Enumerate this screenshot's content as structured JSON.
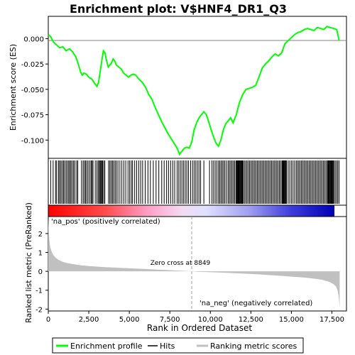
{
  "chart_data": {
    "type": "line",
    "title": "Enrichment plot: V$HNF4_DR1_Q3",
    "xlabel": "Rank in Ordered Dataset",
    "es_panel": {
      "ylabel": "Enrichment score (ES)",
      "ylim": [
        -0.118,
        0.022
      ],
      "yticks": [
        0.0,
        -0.025,
        -0.05,
        -0.075,
        -0.1
      ],
      "ytick_labels": [
        "0.000",
        "-0.025",
        "-0.050",
        "-0.075",
        "-0.100"
      ],
      "series": [
        {
          "name": "Enrichment profile",
          "color": "#00ff00",
          "x": [
            0,
            150,
            300,
            500,
            700,
            900,
            1100,
            1300,
            1500,
            1700,
            1850,
            2000,
            2100,
            2200,
            2350,
            2500,
            2700,
            2850,
            3000,
            3100,
            3200,
            3300,
            3400,
            3500,
            3600,
            3700,
            3800,
            3900,
            4000,
            4100,
            4200,
            4350,
            4500,
            4650,
            4800,
            4950,
            5100,
            5250,
            5400,
            5600,
            5800,
            6000,
            6200,
            6400,
            6600,
            6800,
            7000,
            7200,
            7400,
            7600,
            7800,
            7950,
            8100,
            8250,
            8400,
            8550,
            8700,
            8849,
            9000,
            9150,
            9300,
            9450,
            9600,
            9750,
            9900,
            10050,
            10200,
            10350,
            10500,
            10650,
            10800,
            10950,
            11100,
            11250,
            11400,
            11600,
            11800,
            12000,
            12200,
            12400,
            12600,
            12800,
            13000,
            13200,
            13400,
            13600,
            13800,
            14000,
            14200,
            14400,
            14600,
            14800,
            15000,
            15200,
            15400,
            15600,
            15800,
            16000,
            16200,
            16400,
            16600,
            16800,
            17000,
            17200,
            17400,
            17600,
            17800,
            17950
          ],
          "y": [
            0.004,
            0.002,
            -0.003,
            -0.006,
            -0.009,
            -0.008,
            -0.012,
            -0.01,
            -0.013,
            -0.018,
            -0.025,
            -0.033,
            -0.036,
            -0.034,
            -0.035,
            -0.038,
            -0.04,
            -0.044,
            -0.047,
            -0.043,
            -0.033,
            -0.022,
            -0.012,
            -0.014,
            -0.022,
            -0.028,
            -0.026,
            -0.024,
            -0.02,
            -0.022,
            -0.026,
            -0.028,
            -0.03,
            -0.034,
            -0.036,
            -0.038,
            -0.036,
            -0.035,
            -0.036,
            -0.04,
            -0.043,
            -0.048,
            -0.055,
            -0.06,
            -0.068,
            -0.075,
            -0.082,
            -0.088,
            -0.094,
            -0.099,
            -0.104,
            -0.108,
            -0.114,
            -0.111,
            -0.108,
            -0.107,
            -0.108,
            -0.102,
            -0.09,
            -0.083,
            -0.078,
            -0.075,
            -0.072,
            -0.075,
            -0.082,
            -0.09,
            -0.097,
            -0.103,
            -0.106,
            -0.1,
            -0.09,
            -0.084,
            -0.081,
            -0.078,
            -0.083,
            -0.075,
            -0.063,
            -0.055,
            -0.05,
            -0.049,
            -0.048,
            -0.046,
            -0.038,
            -0.029,
            -0.025,
            -0.022,
            -0.018,
            -0.015,
            -0.017,
            -0.014,
            -0.005,
            -0.002,
            0.001,
            0.004,
            0.006,
            0.007,
            0.009,
            0.01,
            0.009,
            0.008,
            0.011,
            0.01,
            0.009,
            0.012,
            0.011,
            0.01,
            0.009,
            -0.002
          ]
        }
      ]
    },
    "hits_panel": {
      "legend_label": "Hits",
      "color": "#000000",
      "hit_ranks": [
        150,
        300,
        450,
        520,
        640,
        700,
        780,
        860,
        940,
        1010,
        1100,
        1180,
        1260,
        1330,
        1400,
        1480,
        1560,
        1640,
        1750,
        1820,
        2050,
        2150,
        2230,
        2300,
        2380,
        2460,
        2560,
        2640,
        2700,
        2760,
        2900,
        3000,
        3080,
        3150,
        3200,
        3250,
        3300,
        3350,
        3420,
        3490,
        3720,
        3800,
        3880,
        3960,
        4030,
        4120,
        4200,
        4300,
        4420,
        4540,
        4660,
        4780,
        4920,
        5020,
        5120,
        5200,
        5330,
        5450,
        5580,
        5700,
        5820,
        5980,
        6150,
        6300,
        6480,
        6650,
        6820,
        7000,
        7150,
        7300,
        7420,
        7550,
        7680,
        7800,
        7950,
        8050,
        8150,
        8250,
        8350,
        8450,
        8550,
        8650,
        8780,
        8900,
        9000,
        9100,
        9200,
        9300,
        9400,
        9600,
        9950,
        10100,
        10200,
        10300,
        10400,
        10500,
        10580,
        10660,
        10740,
        10820,
        10900,
        11000,
        11100,
        11180,
        11260,
        11340,
        11420,
        11500,
        11580,
        11620,
        11660,
        11700,
        11740,
        11780,
        11820,
        11860,
        11900,
        11940,
        11980,
        12020,
        12100,
        12180,
        12260,
        12340,
        12420,
        12500,
        12580,
        12660,
        12740,
        12820,
        12900,
        12980,
        13060,
        13140,
        13220,
        13300,
        13380,
        13460,
        13540,
        13620,
        13700,
        13780,
        13860,
        13940,
        14020,
        14100,
        14180,
        14260,
        14340,
        14420,
        14460,
        14500,
        14540,
        14580,
        14620,
        14660,
        14700,
        14800,
        14900,
        15000,
        15100,
        15200,
        15300,
        15380,
        15460,
        15540,
        15620,
        15700,
        15780,
        15860,
        15940,
        16020,
        16100,
        16180,
        16260,
        16340,
        16420,
        16500,
        16580,
        16660,
        16740,
        16820,
        16900,
        16980,
        17060,
        17140,
        17220,
        17260,
        17300,
        17340,
        17380,
        17420,
        17460,
        17500,
        17540,
        17580,
        17620,
        17700,
        17780,
        17860,
        17940
      ]
    },
    "ranked_metric_panel": {
      "ylabel": "Ranked list metric (PreRanked)",
      "legend_label": "Ranking metric scores",
      "color": "#c0c0c0",
      "ylim": [
        -2.1,
        2.9
      ],
      "yticks": [
        2,
        1,
        0,
        -1,
        -2
      ],
      "x": [
        0,
        20,
        60,
        120,
        200,
        300,
        450,
        650,
        900,
        1200,
        1600,
        2000,
        2500,
        3000,
        3500,
        4000,
        4500,
        5000,
        5500,
        6000,
        6500,
        7000,
        7500,
        8000,
        8500,
        8849,
        9200,
        9800,
        10500,
        11000,
        11500,
        12000,
        12500,
        13000,
        13500,
        14000,
        14500,
        15000,
        15500,
        16000,
        16500,
        16900,
        17200,
        17400,
        17600,
        17750,
        17850,
        17920,
        17980
      ],
      "values": [
        2.85,
        2.3,
        1.7,
        1.3,
        1.05,
        0.88,
        0.72,
        0.6,
        0.5,
        0.43,
        0.37,
        0.32,
        0.28,
        0.25,
        0.22,
        0.2,
        0.18,
        0.16,
        0.14,
        0.12,
        0.1,
        0.08,
        0.06,
        0.04,
        0.02,
        0.0,
        -0.02,
        -0.04,
        -0.06,
        -0.08,
        -0.1,
        -0.12,
        -0.14,
        -0.16,
        -0.19,
        -0.22,
        -0.25,
        -0.28,
        -0.31,
        -0.35,
        -0.4,
        -0.45,
        -0.52,
        -0.58,
        -0.68,
        -0.8,
        -1.0,
        -1.3,
        -1.9
      ],
      "annotations": {
        "pos_label": "'na_pos' (positively correlated)",
        "neg_label": "'na_neg' (negatively correlated)",
        "zero_cross": "Zero cross at 8849",
        "zero_cross_rank": 8849,
        "pos_color": "#cc0000",
        "neg_color": "#0000cc"
      }
    },
    "x_axis": {
      "xlim": [
        0,
        18400
      ],
      "xticks": [
        0,
        2500,
        5000,
        7500,
        10000,
        12500,
        15000,
        17500
      ],
      "xtick_labels": [
        "0",
        "2,500",
        "5,000",
        "7,500",
        "10,000",
        "12,500",
        "15,000",
        "17,500"
      ],
      "dataset_size": 17930
    },
    "legend": {
      "placement": "bottom",
      "entries": [
        "Enrichment profile",
        "Hits",
        "Ranking metric scores"
      ]
    },
    "grid": false
  }
}
